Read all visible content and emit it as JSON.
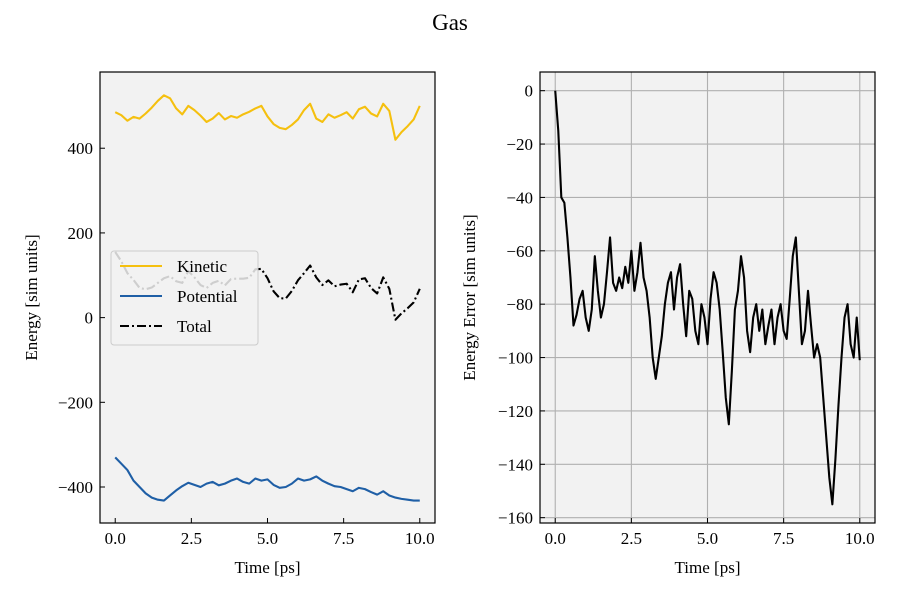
{
  "figure": {
    "title": "Gas",
    "background": "#ffffff",
    "axes_facecolor": "#f2f2f2"
  },
  "chart_data": [
    {
      "type": "line",
      "xlabel": "Time [ps]",
      "ylabel": "Energy [sim units]",
      "xlim": [
        -0.5,
        10.5
      ],
      "ylim": [
        -485,
        580
      ],
      "xticks": [
        0,
        2.5,
        5,
        7.5,
        10
      ],
      "xtick_labels": [
        "0.0",
        "2.5",
        "5.0",
        "7.5",
        "10.0"
      ],
      "yticks": [
        -400,
        -200,
        0,
        200,
        400
      ],
      "ytick_labels": [
        "−400",
        "−200",
        "0",
        "200",
        "400"
      ],
      "grid": false,
      "legend": {
        "placement": "center-left"
      },
      "x": [
        0,
        0.2,
        0.4,
        0.6,
        0.8,
        1.0,
        1.2,
        1.4,
        1.6,
        1.8,
        2.0,
        2.2,
        2.4,
        2.6,
        2.8,
        3.0,
        3.2,
        3.4,
        3.6,
        3.8,
        4.0,
        4.2,
        4.4,
        4.6,
        4.8,
        5.0,
        5.2,
        5.4,
        5.6,
        5.8,
        6.0,
        6.2,
        6.4,
        6.6,
        6.8,
        7.0,
        7.2,
        7.4,
        7.6,
        7.8,
        8.0,
        8.2,
        8.4,
        8.6,
        8.8,
        9.0,
        9.2,
        9.4,
        9.6,
        9.8,
        10.0
      ],
      "series": [
        {
          "name": "Kinetic",
          "color": "#f5c00f",
          "style": "solid",
          "values": [
            485,
            478,
            465,
            474,
            470,
            482,
            496,
            512,
            525,
            518,
            494,
            480,
            500,
            490,
            477,
            462,
            470,
            483,
            468,
            476,
            472,
            480,
            486,
            494,
            500,
            475,
            457,
            448,
            445,
            455,
            468,
            490,
            505,
            470,
            462,
            480,
            472,
            478,
            485,
            470,
            492,
            498,
            482,
            475,
            505,
            488,
            420,
            438,
            452,
            468,
            500
          ]
        },
        {
          "name": "Potential",
          "color": "#1f5fa6",
          "style": "solid",
          "values": [
            -330,
            -345,
            -360,
            -385,
            -400,
            -415,
            -425,
            -430,
            -432,
            -420,
            -408,
            -398,
            -390,
            -395,
            -400,
            -392,
            -388,
            -396,
            -392,
            -385,
            -380,
            -388,
            -392,
            -380,
            -385,
            -382,
            -395,
            -402,
            -400,
            -392,
            -380,
            -385,
            -382,
            -375,
            -385,
            -392,
            -398,
            -400,
            -405,
            -410,
            -402,
            -405,
            -412,
            -418,
            -410,
            -420,
            -425,
            -428,
            -430,
            -432,
            -432
          ]
        },
        {
          "name": "Total",
          "color": "#000000",
          "style": "dashdot",
          "values": [
            155,
            133,
            105,
            89,
            70,
            67,
            71,
            82,
            93,
            98,
            86,
            82,
            110,
            95,
            77,
            70,
            82,
            87,
            76,
            91,
            92,
            92,
            94,
            114,
            115,
            93,
            62,
            46,
            45,
            63,
            88,
            105,
            123,
            95,
            77,
            88,
            74,
            78,
            80,
            60,
            90,
            93,
            70,
            57,
            95,
            68,
            -5,
            10,
            22,
            36,
            68
          ]
        }
      ]
    },
    {
      "type": "line",
      "xlabel": "Time [ps]",
      "ylabel": "Energy Error [sim units]",
      "xlim": [
        -0.5,
        10.5
      ],
      "ylim": [
        -162,
        7
      ],
      "xticks": [
        0,
        2.5,
        5,
        7.5,
        10
      ],
      "xtick_labels": [
        "0.0",
        "2.5",
        "5.0",
        "7.5",
        "10.0"
      ],
      "yticks": [
        -160,
        -140,
        -120,
        -100,
        -80,
        -60,
        -40,
        -20,
        0
      ],
      "ytick_labels": [
        "−160",
        "−140",
        "−120",
        "−100",
        "−80",
        "−60",
        "−40",
        "−20",
        "0"
      ],
      "grid": true,
      "series": [
        {
          "color": "#000000",
          "style": "solid",
          "x": [
            0,
            0.1,
            0.2,
            0.3,
            0.4,
            0.5,
            0.6,
            0.7,
            0.8,
            0.9,
            1.0,
            1.1,
            1.2,
            1.3,
            1.4,
            1.5,
            1.6,
            1.7,
            1.8,
            1.9,
            2.0,
            2.1,
            2.2,
            2.3,
            2.4,
            2.5,
            2.6,
            2.7,
            2.8,
            2.9,
            3.0,
            3.1,
            3.2,
            3.3,
            3.4,
            3.5,
            3.6,
            3.7,
            3.8,
            3.9,
            4.0,
            4.1,
            4.2,
            4.3,
            4.4,
            4.5,
            4.6,
            4.7,
            4.8,
            4.9,
            5.0,
            5.1,
            5.2,
            5.3,
            5.4,
            5.5,
            5.6,
            5.7,
            5.8,
            5.9,
            6.0,
            6.1,
            6.2,
            6.3,
            6.4,
            6.5,
            6.6,
            6.7,
            6.8,
            6.9,
            7.0,
            7.1,
            7.2,
            7.3,
            7.4,
            7.5,
            7.6,
            7.7,
            7.8,
            7.9,
            8.0,
            8.1,
            8.2,
            8.3,
            8.4,
            8.5,
            8.6,
            8.7,
            8.8,
            8.9,
            9.0,
            9.1,
            9.2,
            9.3,
            9.4,
            9.5,
            9.6,
            9.7,
            9.8,
            9.9,
            10.0
          ],
          "values": [
            0,
            -15,
            -40,
            -42,
            -55,
            -70,
            -88,
            -84,
            -78,
            -75,
            -85,
            -90,
            -82,
            -62,
            -75,
            -85,
            -80,
            -68,
            -55,
            -72,
            -75,
            -70,
            -74,
            -66,
            -72,
            -60,
            -75,
            -68,
            -57,
            -70,
            -75,
            -85,
            -100,
            -108,
            -100,
            -92,
            -80,
            -72,
            -68,
            -82,
            -70,
            -65,
            -80,
            -92,
            -75,
            -78,
            -90,
            -95,
            -80,
            -85,
            -95,
            -78,
            -68,
            -72,
            -82,
            -98,
            -115,
            -125,
            -105,
            -82,
            -75,
            -62,
            -70,
            -90,
            -98,
            -85,
            -80,
            -90,
            -82,
            -95,
            -88,
            -82,
            -95,
            -85,
            -80,
            -90,
            -93,
            -78,
            -62,
            -55,
            -75,
            -95,
            -90,
            -75,
            -88,
            -100,
            -95,
            -100,
            -115,
            -130,
            -145,
            -155,
            -138,
            -118,
            -100,
            -85,
            -80,
            -95,
            -100,
            -85,
            -101
          ]
        }
      ]
    }
  ]
}
